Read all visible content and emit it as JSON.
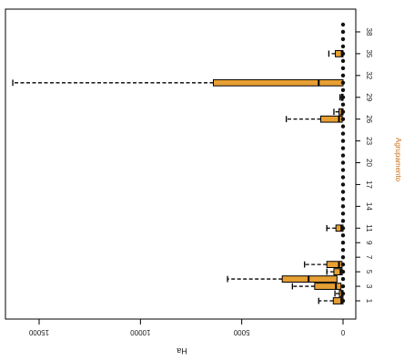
{
  "chart_data": {
    "type": "boxplot",
    "orientation": "horizontal",
    "title": "",
    "xlabel": "Ha",
    "ylabel": "Agrupamento",
    "xlim": [
      0,
      16000
    ],
    "x_reversed": true,
    "x_ticks": [
      0,
      5000,
      10000,
      15000
    ],
    "y_ticks": [
      "1",
      "3",
      "5",
      "7",
      "9",
      "11",
      "14",
      "17",
      "20",
      "23",
      "26",
      "29",
      "32",
      "35",
      "38"
    ],
    "box_color": "#e8a033",
    "grid": false,
    "boxes": [
      {
        "group": 1,
        "q1": 0,
        "median": 80,
        "q3": 480,
        "whisker_max": 1200
      },
      {
        "group": 2,
        "q1": 0,
        "median": 60,
        "q3": 180,
        "whisker_max": 400
      },
      {
        "group": 3,
        "q1": 100,
        "median": 350,
        "q3": 1400,
        "whisker_max": 2500
      },
      {
        "group": 4,
        "q1": 300,
        "median": 1700,
        "q3": 3000,
        "whisker_max": 5700
      },
      {
        "group": 5,
        "q1": 40,
        "median": 120,
        "q3": 450,
        "whisker_max": 800
      },
      {
        "group": 6,
        "q1": 50,
        "median": 200,
        "q3": 800,
        "whisker_max": 1900
      },
      {
        "group": 11,
        "q1": 0,
        "median": 80,
        "q3": 350,
        "whisker_max": 800
      },
      {
        "group": 26,
        "q1": 40,
        "median": 200,
        "q3": 1100,
        "whisker_max": 2800
      },
      {
        "group": 27,
        "q1": 0,
        "median": 60,
        "q3": 200,
        "whisker_max": 450
      },
      {
        "group": 29,
        "q1": 0,
        "median": 30,
        "q3": 80,
        "whisker_max": 150
      },
      {
        "group": 31,
        "q1": 0,
        "median": 1200,
        "q3": 6400,
        "whisker_max": 16300
      },
      {
        "group": 35,
        "q1": 0,
        "median": 60,
        "q3": 380,
        "whisker_max": 700
      }
    ],
    "group_count": 39
  }
}
